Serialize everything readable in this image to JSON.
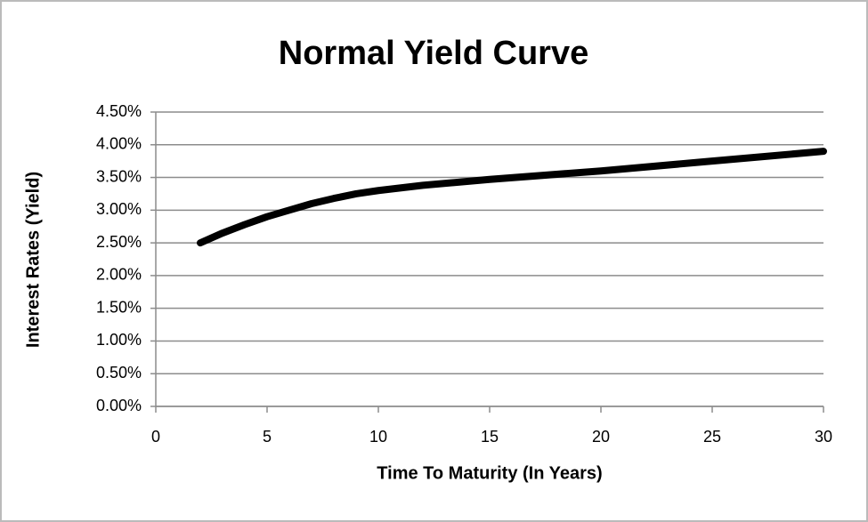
{
  "chart_data": {
    "type": "line",
    "title": "Normal Yield Curve",
    "x_label": "Time To Maturity (In Years)",
    "y_label": "Interest Rates (Yield)",
    "x": [
      2,
      3,
      4,
      5,
      6,
      7,
      8,
      9,
      10,
      12,
      15,
      20,
      25,
      30
    ],
    "series": [
      {
        "name": "Yield",
        "color": "#000000",
        "values": [
          2.5,
          2.65,
          2.78,
          2.9,
          3.0,
          3.1,
          3.18,
          3.25,
          3.3,
          3.38,
          3.47,
          3.6,
          3.75,
          3.9
        ]
      }
    ],
    "xlim": [
      0,
      30
    ],
    "xticks": [
      0,
      5,
      10,
      15,
      20,
      25,
      30
    ],
    "ylim": [
      0,
      4.5
    ],
    "yticks": [
      {
        "value": 0,
        "label": "0.00%"
      },
      {
        "value": 0.5,
        "label": "0.50%"
      },
      {
        "value": 1,
        "label": "1.00%"
      },
      {
        "value": 1.5,
        "label": "1.50%"
      },
      {
        "value": 2,
        "label": "2.00%"
      },
      {
        "value": 2.5,
        "label": "2.50%"
      },
      {
        "value": 3,
        "label": "3.00%"
      },
      {
        "value": 3.5,
        "label": "3.50%"
      },
      {
        "value": 4,
        "label": "4.00%"
      },
      {
        "value": 4.5,
        "label": "4.50%"
      }
    ],
    "grid": true
  }
}
